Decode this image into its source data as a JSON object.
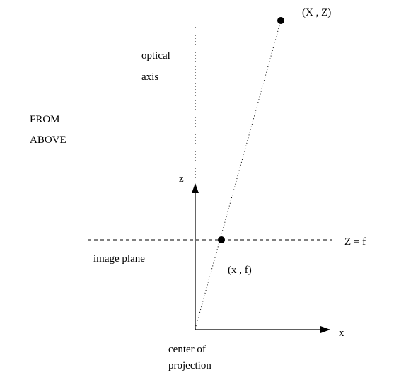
{
  "diagram": {
    "view_label_line1": "FROM",
    "view_label_line2": "ABOVE",
    "optical_axis_line1": "optical",
    "optical_axis_line2": "axis",
    "z_axis_label": "z",
    "x_axis_label": "x",
    "image_plane_label": "image plane",
    "image_plane_equation": "Z = f",
    "world_point_label": "(X , Z)",
    "image_point_label": "(x , f)",
    "center_label_line1": "center of",
    "center_label_line2": "projection"
  },
  "colors": {
    "ink": "#000000",
    "background": "#ffffff"
  }
}
